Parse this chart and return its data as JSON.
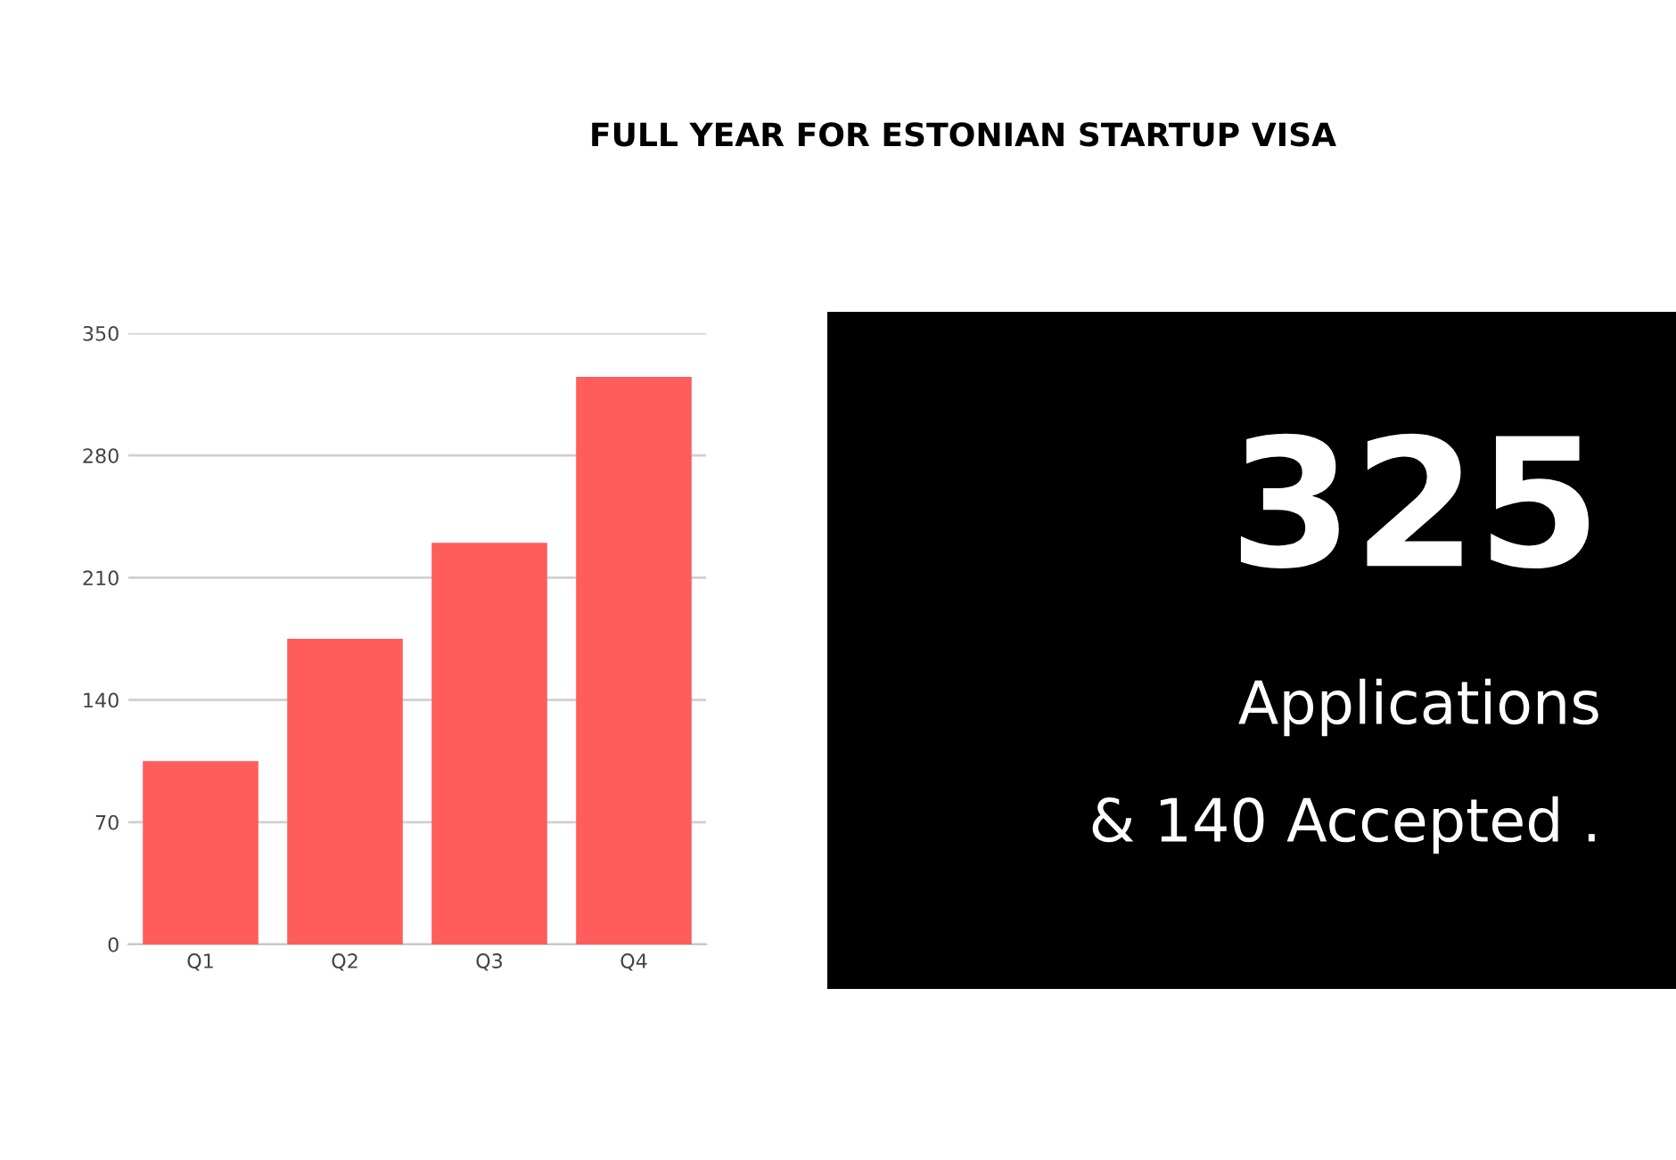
{
  "chart_data": {
    "type": "bar",
    "title": "FULL YEAR FOR ESTONIAN STARTUP VISA",
    "categories": [
      "Q1",
      "Q2",
      "Q3",
      "Q4"
    ],
    "values": [
      105,
      175,
      230,
      325
    ],
    "color": "#ff5c5c",
    "ylim": [
      0,
      350
    ],
    "yticks": [
      0,
      70,
      140,
      210,
      280,
      350
    ],
    "grid": "y",
    "annotations": [
      "325",
      "Applications",
      "& 140 Accepted ."
    ]
  }
}
